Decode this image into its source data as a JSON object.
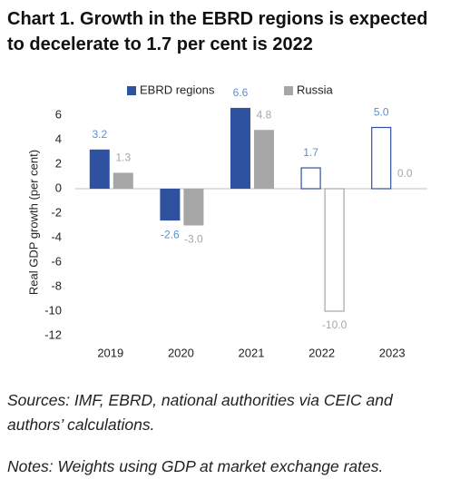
{
  "chart_data": {
    "type": "bar",
    "title": "Chart 1. Growth in the EBRD regions is expected to decelerate to 1.7 per cent is 2022",
    "y_label": "Real GDP growth (per cent)",
    "categories": [
      "2019",
      "2020",
      "2021",
      "2022",
      "2023"
    ],
    "hollow": [
      false,
      false,
      false,
      true,
      true
    ],
    "series": [
      {
        "name": "EBRD regions",
        "color": "#2f52a0",
        "label_color": "#5b8fd0",
        "values": [
          3.2,
          -2.6,
          6.6,
          1.7,
          5.0
        ],
        "value_labels": [
          "3.2",
          "-2.6",
          "6.6",
          "1.7",
          "5.0"
        ]
      },
      {
        "name": "Russia",
        "color": "#a6a6a6",
        "label_color": "#a6a6a6",
        "values": [
          1.3,
          -3.0,
          4.8,
          -10.0,
          0.0
        ],
        "value_labels": [
          "1.3",
          "-3.0",
          "4.8",
          "-10.0",
          "0.0"
        ]
      }
    ],
    "ylim": [
      -12,
      7
    ],
    "yticks": [
      -12,
      -10,
      -8,
      -6,
      -4,
      -2,
      0,
      2,
      4,
      6
    ],
    "legend": "top",
    "grid": false,
    "sources": "Sources: IMF, EBRD, national authorities via CEIC and authors’ calculations.",
    "notes": "Notes: Weights using GDP at market exchange rates."
  }
}
